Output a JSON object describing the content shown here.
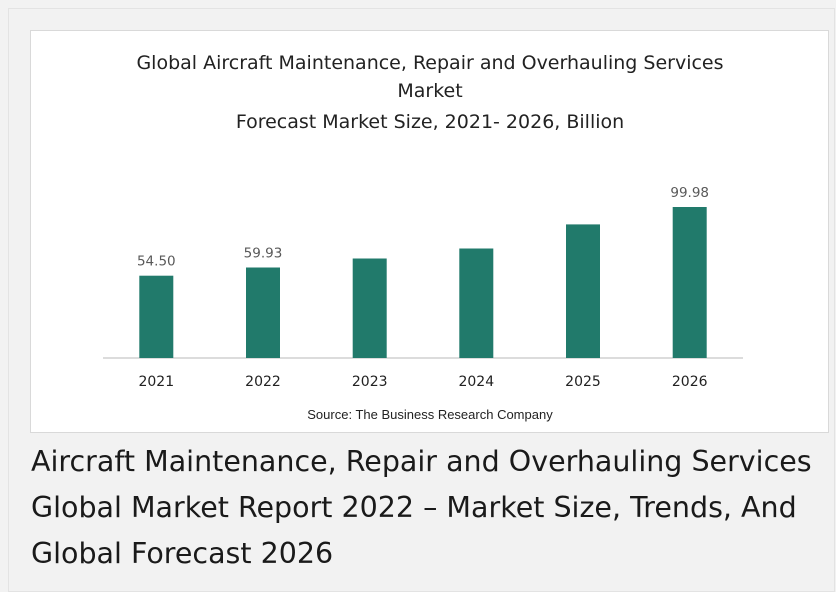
{
  "chart_data": {
    "type": "bar",
    "title_lines": [
      "Global Aircraft Maintenance, Repair and Overhauling Services",
      "Market",
      "Forecast Market Size, 2021- 2026, Billion"
    ],
    "categories": [
      "2021",
      "2022",
      "2023",
      "2024",
      "2025",
      "2026"
    ],
    "values": [
      54.5,
      59.93,
      65.9,
      72.5,
      88.5,
      99.98
    ],
    "data_labels": [
      "54.50",
      "59.93",
      "",
      "",
      "",
      "99.98"
    ],
    "ylim": [
      0,
      100
    ],
    "grid": false,
    "bar_color": "#217a6b",
    "source": "Source: The Business Research Company"
  },
  "caption": "Aircraft Maintenance, Repair and Overhauling Services Global Market Report 2022 – Market Size, Trends, And Global Forecast 2026"
}
